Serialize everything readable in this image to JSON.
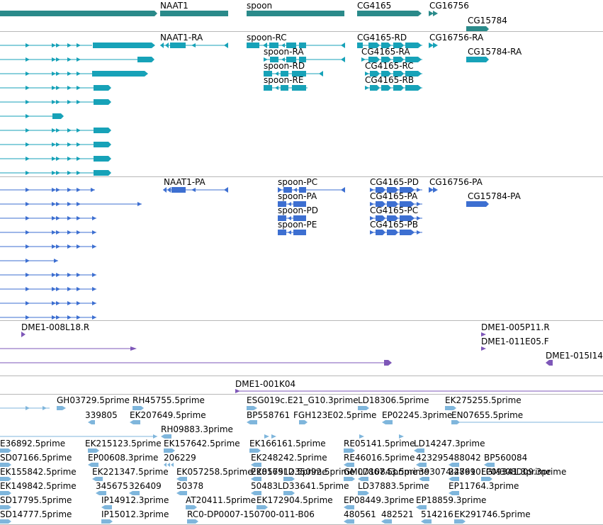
{
  "colors": {
    "gene": "#2a8a8a",
    "transcript": "#17a2b8",
    "cds": "#3d6fd1",
    "clone": "#7e57b8",
    "est": "#7fb6dc",
    "divider": "#b8b8b8"
  },
  "tracks": {
    "genes": {
      "labels": [
        "NAAT1",
        "spoon",
        "CG4165",
        "CG16756",
        "CG15784"
      ]
    },
    "transcripts": {
      "labels": [
        "NAAT1-RA",
        "spoon-RC",
        "CG4165-RD",
        "CG16756-RA",
        "spoon-RA",
        "CG4165-RA",
        "CG15784-RA",
        "spoon-RD",
        "CG4165-RC",
        "spoon-RE",
        "CG4165-RB"
      ]
    },
    "proteins": {
      "labels": [
        "NAAT1-PA",
        "spoon-PC",
        "CG4165-PD",
        "CG16756-PA",
        "spoon-PA",
        "CG4165-PA",
        "CG15784-PA",
        "spoon-PD",
        "CG4165-PC",
        "spoon-PE",
        "CG4165-PB"
      ]
    },
    "clones": {
      "labels": [
        "DME1-008L18.R",
        "DME1-005P11.R",
        "DME1-011E05.F",
        "DME1-015I14",
        "DME1-001K04"
      ]
    },
    "ests": {
      "labels": [
        "GH03729.5prime",
        "RH45755.5prime",
        "ESG019c.E21_G10.3prime",
        "LD18306.5prime",
        "EK275255.5prime",
        "339805",
        "EK207649.5prime",
        "BP558761",
        "FGH123E02.5prime",
        "EP02245.3prime",
        "EN07655.5prime",
        "RH09883.3prime",
        "E36892.5prime",
        "EK215123.5prime",
        "EK157642.5prime",
        "EK166161.5prime",
        "RE05141.5prime",
        "LD14247.3prime",
        "SD07166.5prime",
        "EP00608.3prime",
        "206229",
        "EK248242.5prime",
        "RE46016.5prime",
        "423295",
        "488042",
        "BP560084",
        "EK155842.5prime",
        "EK221347.5prime",
        "EK057258.5prime",
        "EK057512.5prime",
        "GM07867.5prime",
        "393074",
        "24799",
        "LP09341.3prime",
        "EK149842.5prime",
        "345675",
        "326409",
        "50378",
        "228169",
        "LD35092.5prime",
        "LD10843.5prime",
        "328610",
        "FGM308D09.3prime",
        "SD17795.5prime",
        "IP14912.3prime",
        "AT20411.5prime",
        "50483",
        "LD33641.5prime",
        "LD37883.5prime",
        "EP11764.3prime",
        "SD14777.5prime",
        "IP15012.3prime",
        "RC0-DP0007-150700-011-B06",
        "EK172904.5prime",
        "EP08449.3prime",
        "EP18859.3prime",
        "480561",
        "482521",
        "514216",
        "EK291746.5prime"
      ]
    }
  }
}
